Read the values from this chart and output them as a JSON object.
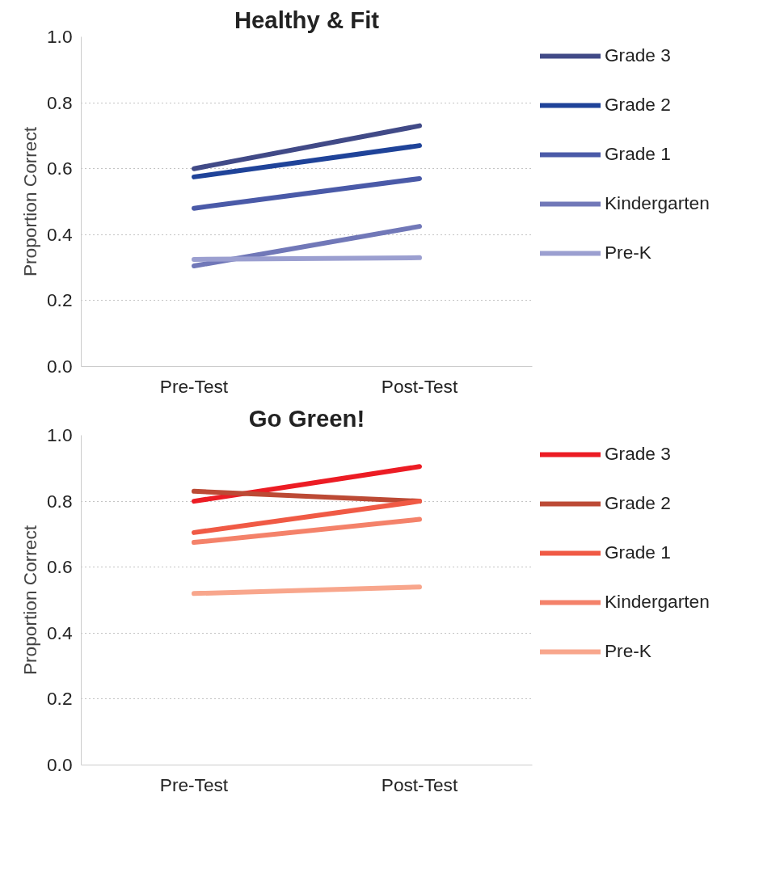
{
  "chart_data": [
    {
      "type": "line",
      "title": "Healthy & Fit",
      "ylabel": "Proportion Correct",
      "categories": [
        "Pre-Test",
        "Post-Test"
      ],
      "ylim": [
        0,
        1
      ],
      "yticks": [
        {
          "value": 0,
          "label": "0.0"
        },
        {
          "value": 0.2,
          "label": "0.2"
        },
        {
          "value": 0.4,
          "label": "0.4"
        },
        {
          "value": 0.6,
          "label": "0.6"
        },
        {
          "value": 0.8,
          "label": "0.8"
        },
        {
          "value": 1,
          "label": "1.0"
        }
      ],
      "grid": "y",
      "legend": "right",
      "marker": "none",
      "line_style": "solid",
      "series": [
        {
          "name": "Grade 3",
          "color": "#414a87",
          "values": [
            0.6,
            0.73
          ]
        },
        {
          "name": "Grade 2",
          "color": "#1f4399",
          "values": [
            0.575,
            0.67
          ]
        },
        {
          "name": "Grade 1",
          "color": "#4a5aa8",
          "values": [
            0.48,
            0.57
          ]
        },
        {
          "name": "Kindergarten",
          "color": "#7178b8",
          "values": [
            0.305,
            0.425
          ]
        },
        {
          "name": "Pre-K",
          "color": "#9b9fd0",
          "values": [
            0.325,
            0.33
          ]
        }
      ]
    },
    {
      "type": "line",
      "title": "Go Green!",
      "ylabel": "Proportion Correct",
      "categories": [
        "Pre-Test",
        "Post-Test"
      ],
      "ylim": [
        0,
        1
      ],
      "yticks": [
        {
          "value": 0,
          "label": "0.0"
        },
        {
          "value": 0.2,
          "label": "0.2"
        },
        {
          "value": 0.4,
          "label": "0.4"
        },
        {
          "value": 0.6,
          "label": "0.6"
        },
        {
          "value": 0.8,
          "label": "0.8"
        },
        {
          "value": 1,
          "label": "1.0"
        }
      ],
      "grid": "y",
      "legend": "right",
      "marker": "none",
      "line_style": "solid",
      "series": [
        {
          "name": "Grade 3",
          "color": "#ec1c24",
          "values": [
            0.8,
            0.905
          ]
        },
        {
          "name": "Grade 2",
          "color": "#bc4a35",
          "values": [
            0.83,
            0.8
          ]
        },
        {
          "name": "Grade 1",
          "color": "#f05a45",
          "values": [
            0.705,
            0.8
          ]
        },
        {
          "name": "Kindergarten",
          "color": "#f4826a",
          "values": [
            0.675,
            0.745
          ]
        },
        {
          "name": "Pre-K",
          "color": "#f8a68c",
          "values": [
            0.52,
            0.54
          ]
        }
      ]
    }
  ]
}
